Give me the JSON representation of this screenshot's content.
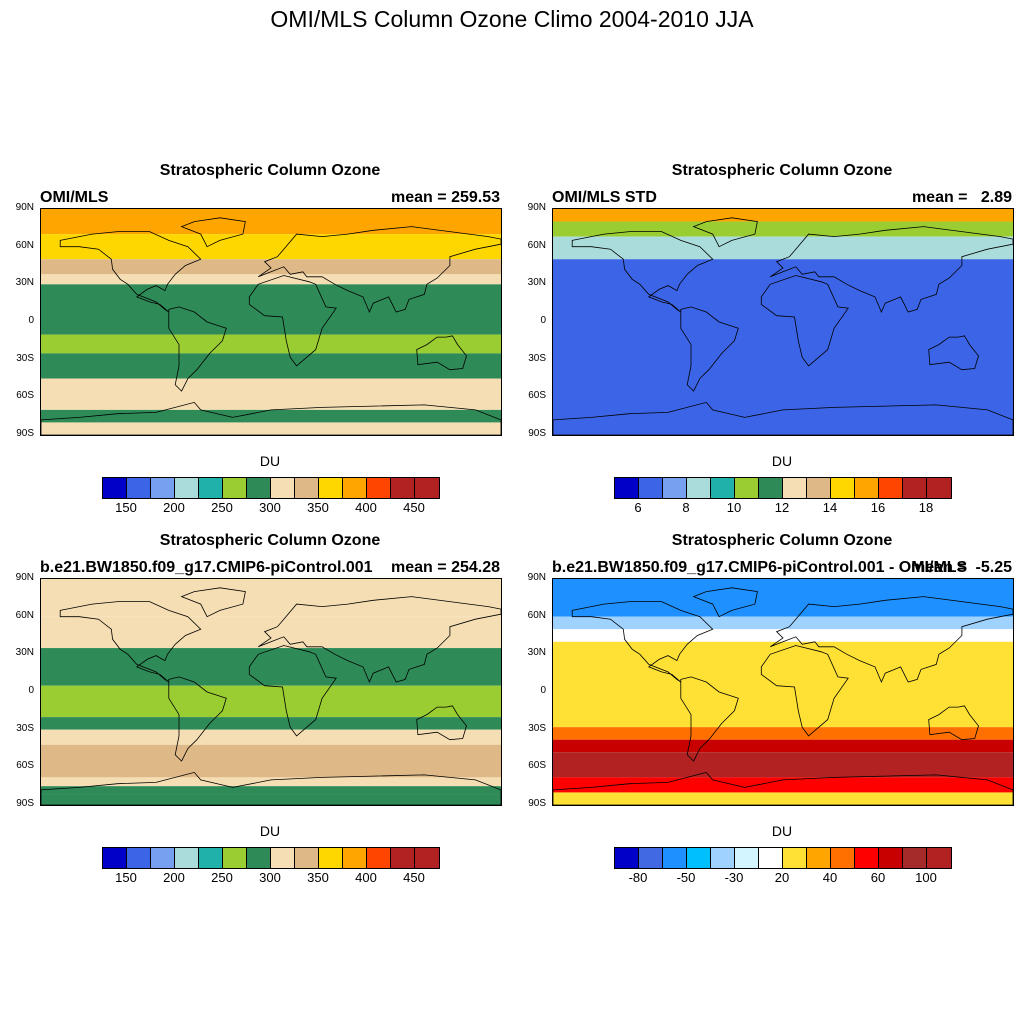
{
  "figure": {
    "title": "OMI/MLS Column Ozone Climo 2004-2010 JJA"
  },
  "lat_labels": [
    "90N",
    "60N",
    "30N",
    "0",
    "30S",
    "60S",
    "90S"
  ],
  "panels": [
    {
      "title": "Stratospheric Column Ozone",
      "left_string": "OMI/MLS",
      "right_string": "mean = 259.53",
      "units": "DU",
      "colorbar": {
        "colors": [
          "#0000c8",
          "#3c64e6",
          "#78a0f0",
          "#aadcdc",
          "#20b2aa",
          "#9acd32",
          "#2e8b57",
          "#f5deb3",
          "#deb887",
          "#ffd700",
          "#ffa500",
          "#ff4500",
          "#b22222",
          "#b22222"
        ],
        "labels": [
          "150",
          "200",
          "250",
          "300",
          "350",
          "400",
          "450"
        ]
      },
      "chart_data": {
        "type": "heatmap",
        "description_field": "zonal bands",
        "bands": [
          {
            "lat_range": [
              70,
              90
            ],
            "value": 360
          },
          {
            "lat_range": [
              50,
              70
            ],
            "value": 330
          },
          {
            "lat_range": [
              38,
              50
            ],
            "value": 310
          },
          {
            "lat_range": [
              30,
              38
            ],
            "value": 290
          },
          {
            "lat_range": [
              -10,
              30
            ],
            "value": 260
          },
          {
            "lat_range": [
              -25,
              -10
            ],
            "value": 240
          },
          {
            "lat_range": [
              -45,
              -25
            ],
            "value": 260
          },
          {
            "lat_range": [
              -70,
              -45
            ],
            "value": 280
          },
          {
            "lat_range": [
              -80,
              -70
            ],
            "value": 260
          },
          {
            "lat_range": [
              -90,
              -80
            ],
            "value": 280
          }
        ],
        "mean": 259.53
      }
    },
    {
      "title": "Stratospheric Column Ozone",
      "left_string": "OMI/MLS STD",
      "right_string": "mean =   2.89",
      "units": "DU",
      "colorbar": {
        "colors": [
          "#0000c8",
          "#3c64e6",
          "#78a0f0",
          "#aadcdc",
          "#20b2aa",
          "#9acd32",
          "#2e8b57",
          "#f5deb3",
          "#deb887",
          "#ffd700",
          "#ffa500",
          "#ff4500",
          "#b22222",
          "#b22222"
        ],
        "labels": [
          "6",
          "8",
          "10",
          "12",
          "14",
          "16",
          "18"
        ]
      },
      "chart_data": {
        "type": "heatmap",
        "bands": [
          {
            "lat_range": [
              80,
              90
            ],
            "value": 14
          },
          {
            "lat_range": [
              68,
              80
            ],
            "value": 9
          },
          {
            "lat_range": [
              50,
              68
            ],
            "value": 7
          },
          {
            "lat_range": [
              -90,
              50
            ],
            "value": 5
          }
        ],
        "mean": 2.89
      }
    },
    {
      "title": "Stratospheric Column Ozone",
      "left_string": "b.e21.BW1850.f09_g17.CMIP6-piControl.001",
      "right_string": "mean = 254.28",
      "units": "DU",
      "colorbar": {
        "colors": [
          "#0000c8",
          "#3c64e6",
          "#78a0f0",
          "#aadcdc",
          "#20b2aa",
          "#9acd32",
          "#2e8b57",
          "#f5deb3",
          "#deb887",
          "#ffd700",
          "#ffa500",
          "#ff4500",
          "#b22222",
          "#b22222"
        ],
        "labels": [
          "150",
          "200",
          "250",
          "300",
          "350",
          "400",
          "450"
        ]
      },
      "chart_data": {
        "type": "heatmap",
        "bands": [
          {
            "lat_range": [
              60,
              90
            ],
            "value": 290
          },
          {
            "lat_range": [
              35,
              60
            ],
            "value": 275
          },
          {
            "lat_range": [
              5,
              35
            ],
            "value": 260
          },
          {
            "lat_range": [
              -20,
              5
            ],
            "value": 240
          },
          {
            "lat_range": [
              -30,
              -20
            ],
            "value": 260
          },
          {
            "lat_range": [
              -42,
              -30
            ],
            "value": 285
          },
          {
            "lat_range": [
              -68,
              -42
            ],
            "value": 310
          },
          {
            "lat_range": [
              -75,
              -68
            ],
            "value": 290
          },
          {
            "lat_range": [
              -82,
              -75
            ],
            "value": 270
          },
          {
            "lat_range": [
              -90,
              -82
            ],
            "value": 260
          }
        ],
        "mean": 254.28
      }
    },
    {
      "title": "Stratospheric Column Ozone",
      "left_string": "b.e21.BW1850.f09_g17.CMIP6-piControl.001 - OMI/MLS",
      "right_string": "mean =  -5.25",
      "units": "DU",
      "colorbar": {
        "colors": [
          "#0000c8",
          "#4169e1",
          "#1e90ff",
          "#00bfff",
          "#a0d2ff",
          "#d2f5ff",
          "#ffffff",
          "#ffe135",
          "#ffa500",
          "#ff7000",
          "#ff0000",
          "#c80000",
          "#a52a2a",
          "#b22222"
        ],
        "labels": [
          "-80",
          "-50",
          "-30",
          "20",
          "40",
          "60",
          "100"
        ]
      },
      "chart_data": {
        "type": "heatmap",
        "bands": [
          {
            "lat_range": [
              60,
              90
            ],
            "value": -80
          },
          {
            "lat_range": [
              50,
              60
            ],
            "value": -50
          },
          {
            "lat_range": [
              40,
              50
            ],
            "value": -30
          },
          {
            "lat_range": [
              -28,
              40
            ],
            "value": 0
          },
          {
            "lat_range": [
              -38,
              -28
            ],
            "value": 30
          },
          {
            "lat_range": [
              -48,
              -38
            ],
            "value": 50
          },
          {
            "lat_range": [
              -68,
              -48
            ],
            "value": 70
          },
          {
            "lat_range": [
              -80,
              -68
            ],
            "value": 40
          },
          {
            "lat_range": [
              -90,
              -80
            ],
            "value": 0
          }
        ],
        "mean": -5.25
      }
    }
  ]
}
